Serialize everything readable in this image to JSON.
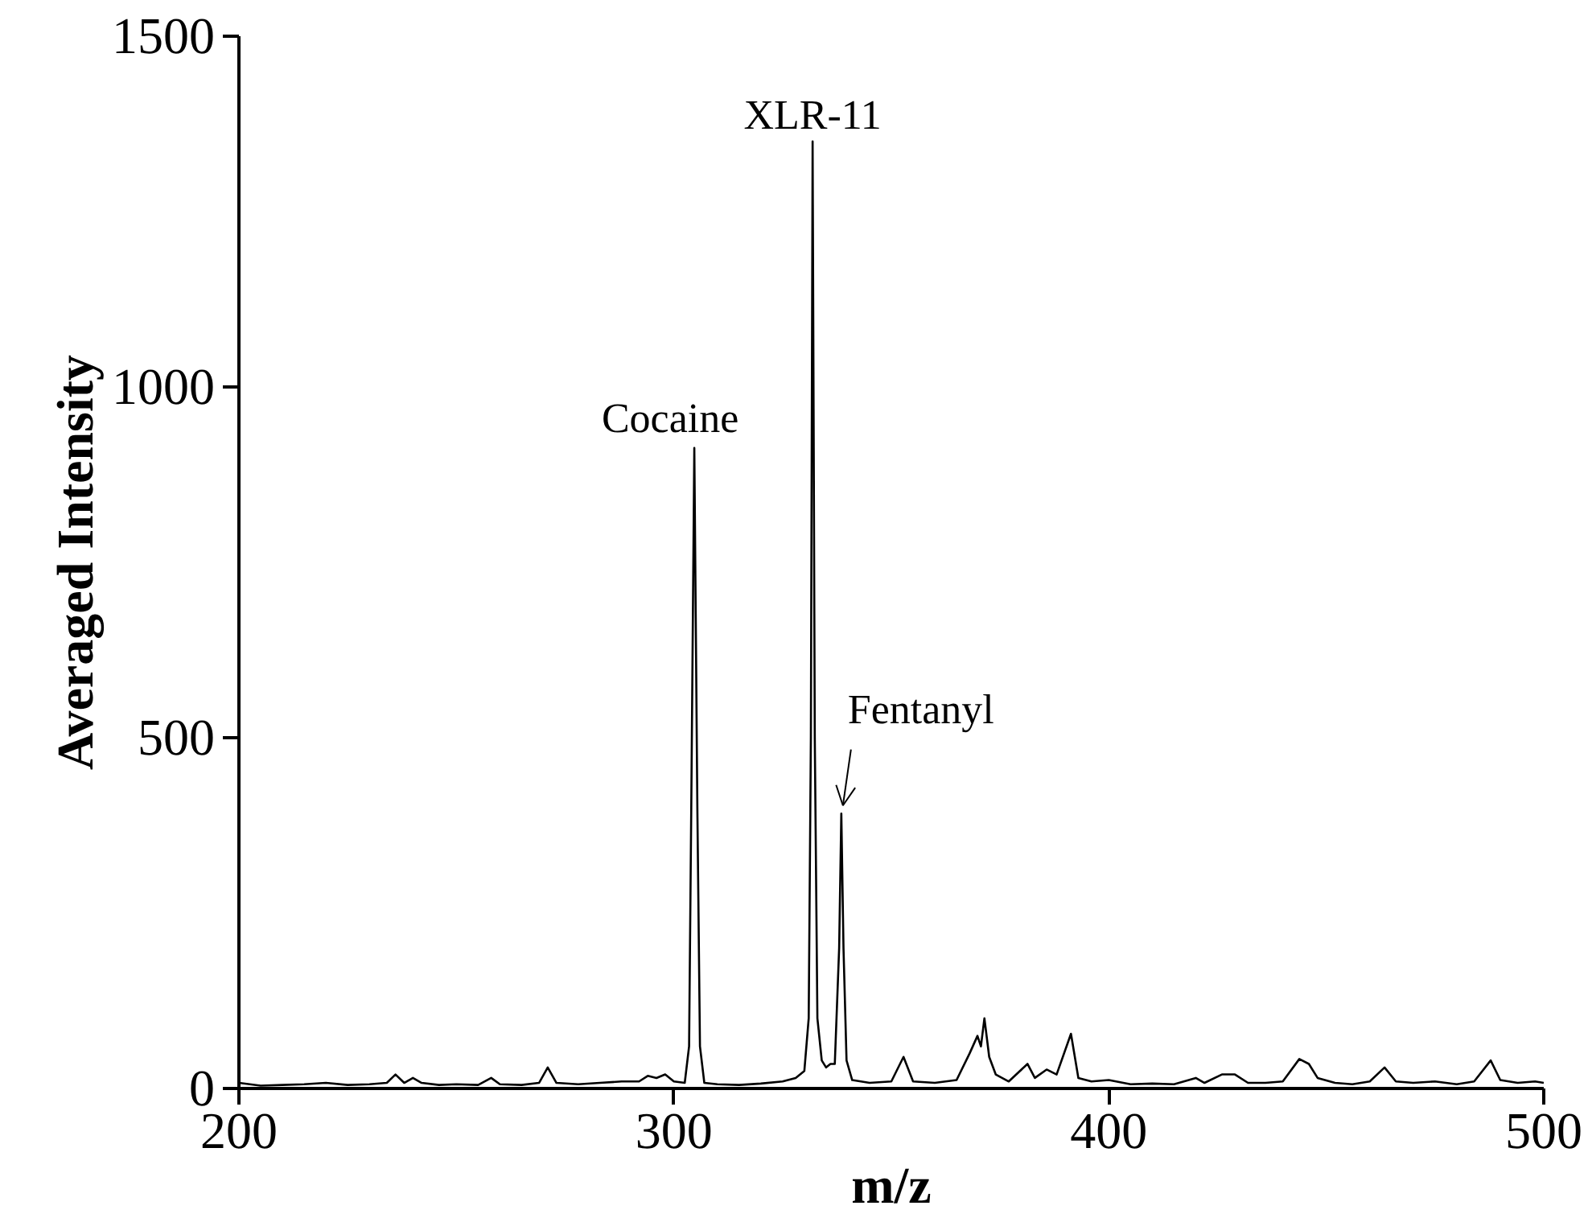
{
  "chart_data": {
    "type": "line",
    "xlabel": "m/z",
    "ylabel": "Averaged Intensity",
    "x": [
      200,
      205,
      210,
      215,
      220,
      225,
      230,
      234,
      236,
      238,
      240,
      242,
      246,
      250,
      255,
      258,
      260,
      265,
      269,
      271,
      273,
      278,
      283,
      288,
      292,
      294,
      296,
      298,
      300,
      302.5,
      303.5,
      304,
      304.7,
      305.4,
      306,
      307,
      310,
      315,
      320,
      325,
      328,
      330,
      331,
      331.5,
      331.9,
      332.4,
      333,
      334,
      335,
      336,
      337,
      338,
      338.5,
      339,
      339.7,
      341,
      345,
      350,
      352.8,
      355,
      360,
      365,
      368,
      369.8,
      370.6,
      371.4,
      372.5,
      374,
      377,
      381.3,
      383,
      385.7,
      388,
      391.3,
      393,
      396,
      400,
      405,
      410,
      415,
      420,
      422,
      426,
      429,
      432,
      436,
      440,
      443.8,
      446,
      448,
      452,
      456,
      460,
      463.4,
      466,
      470,
      475,
      480,
      484,
      487.8,
      490,
      494,
      498,
      500
    ],
    "series": [
      {
        "color": "#000000",
        "values": [
          8,
          4,
          5,
          6,
          8,
          5,
          6,
          8,
          20,
          8,
          15,
          8,
          5,
          6,
          5,
          15,
          6,
          5,
          8,
          30,
          8,
          6,
          8,
          10,
          10,
          18,
          15,
          20,
          10,
          8,
          60,
          400,
          913,
          400,
          60,
          8,
          6,
          5,
          7,
          10,
          15,
          25,
          100,
          500,
          1350,
          500,
          100,
          40,
          30,
          35,
          35,
          200,
          392,
          200,
          40,
          12,
          8,
          10,
          45,
          10,
          8,
          12,
          50,
          75,
          60,
          100,
          45,
          20,
          10,
          35,
          15,
          27,
          20,
          78,
          15,
          10,
          12,
          6,
          7,
          6,
          15,
          8,
          20,
          20,
          8,
          8,
          10,
          42,
          35,
          15,
          8,
          6,
          10,
          30,
          10,
          8,
          10,
          6,
          10,
          40,
          12,
          8,
          10,
          8
        ]
      }
    ],
    "xlim": [
      200,
      500
    ],
    "ylim": [
      0,
      1500
    ],
    "xticks": [
      200,
      300,
      400,
      500
    ],
    "yticks": [
      0,
      500,
      1000,
      1500
    ],
    "grid": false,
    "marker": "none",
    "line_style": "solid",
    "annotations": [
      {
        "text": "Cocaine",
        "x": 304.7,
        "y": 913
      },
      {
        "text": "XLR-11",
        "x": 331.9,
        "y": 1350
      },
      {
        "text": "Fentanyl",
        "x": 338.5,
        "y": 392
      }
    ]
  }
}
